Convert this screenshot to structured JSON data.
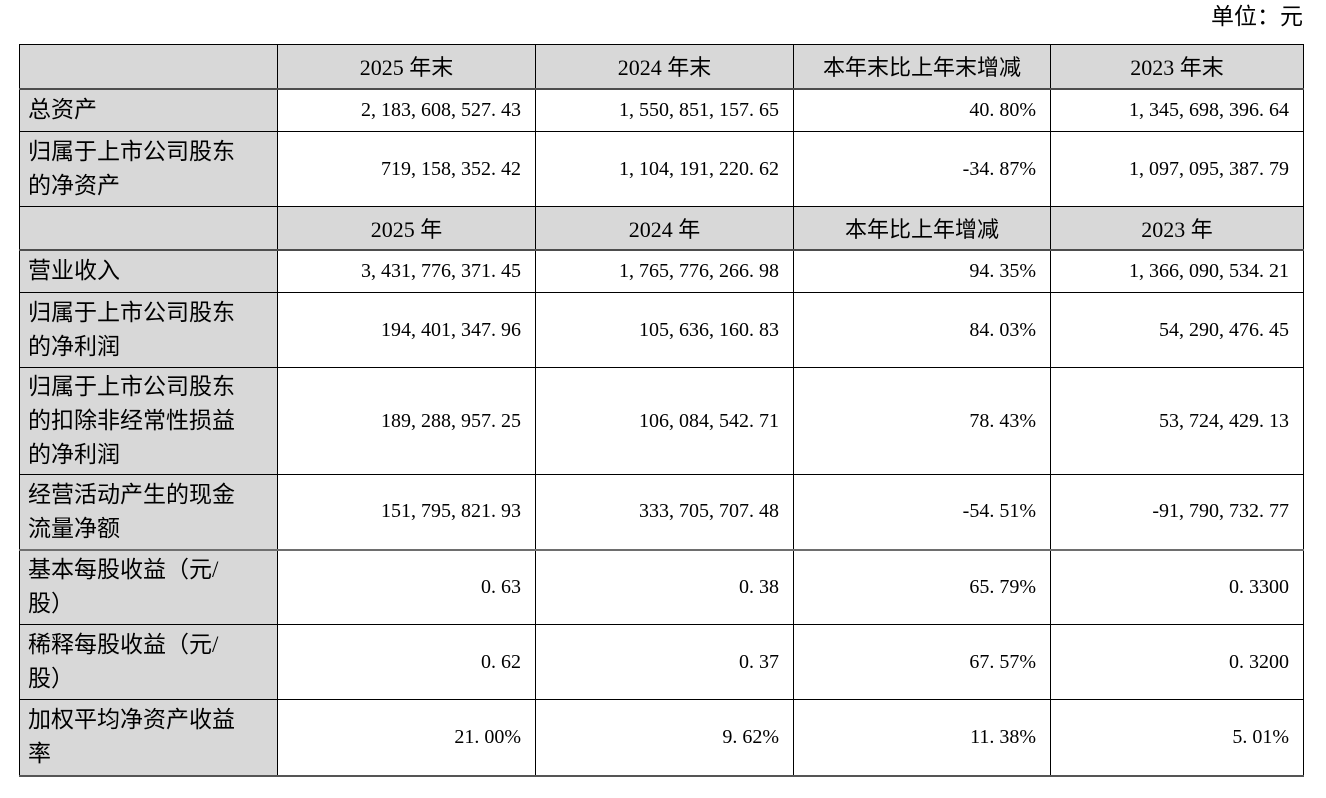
{
  "unit_label": "单位：元",
  "colors": {
    "header_fill": "#d8d8d8",
    "border": "#000000",
    "thick_border": "#555555",
    "text": "#000000",
    "background": "#ffffff"
  },
  "table": {
    "rows": [
      {
        "type": "header",
        "cells": [
          "",
          "2025 年末",
          "2024 年末",
          "本年末比上年末增减",
          "2023 年末"
        ]
      },
      {
        "type": "data",
        "cells": [
          "总资产",
          "2, 183, 608, 527. 43",
          "1, 550, 851, 157. 65",
          "40. 80%",
          "1, 345, 698, 396. 64"
        ]
      },
      {
        "type": "data",
        "cells": [
          "归属于上市公司股东\n的净资产",
          "719, 158, 352. 42",
          "1, 104, 191, 220. 62",
          "-34. 87%",
          "1, 097, 095, 387. 79"
        ]
      },
      {
        "type": "header",
        "cells": [
          "",
          "2025 年",
          "2024 年",
          "本年比上年增减",
          "2023 年"
        ]
      },
      {
        "type": "data",
        "cells": [
          "营业收入",
          "3, 431, 776, 371. 45",
          "1, 765, 776, 266. 98",
          "94. 35%",
          "1, 366, 090, 534. 21"
        ]
      },
      {
        "type": "data",
        "cells": [
          "归属于上市公司股东\n的净利润",
          "194, 401, 347. 96",
          "105, 636, 160. 83",
          "84. 03%",
          "54, 290, 476. 45"
        ]
      },
      {
        "type": "data",
        "cells": [
          "归属于上市公司股东\n的扣除非经常性损益\n的净利润",
          "189, 288, 957. 25",
          "106, 084, 542. 71",
          "78. 43%",
          "53, 724, 429. 13"
        ]
      },
      {
        "type": "data",
        "cells": [
          "经营活动产生的现金\n流量净额",
          "151, 795, 821. 93",
          "333, 705, 707. 48",
          "-54. 51%",
          "-91, 790, 732. 77"
        ]
      },
      {
        "type": "data",
        "cells": [
          "基本每股收益（元/\n股）",
          "0. 63",
          "0. 38",
          "65. 79%",
          "0. 3300"
        ]
      },
      {
        "type": "data",
        "cells": [
          "稀释每股收益（元/\n股）",
          "0. 62",
          "0. 37",
          "67. 57%",
          "0. 3200"
        ]
      },
      {
        "type": "data",
        "cells": [
          "加权平均净资产收益\n率",
          "21. 00%",
          "9. 62%",
          "11. 38%",
          "5. 01%"
        ]
      }
    ]
  }
}
